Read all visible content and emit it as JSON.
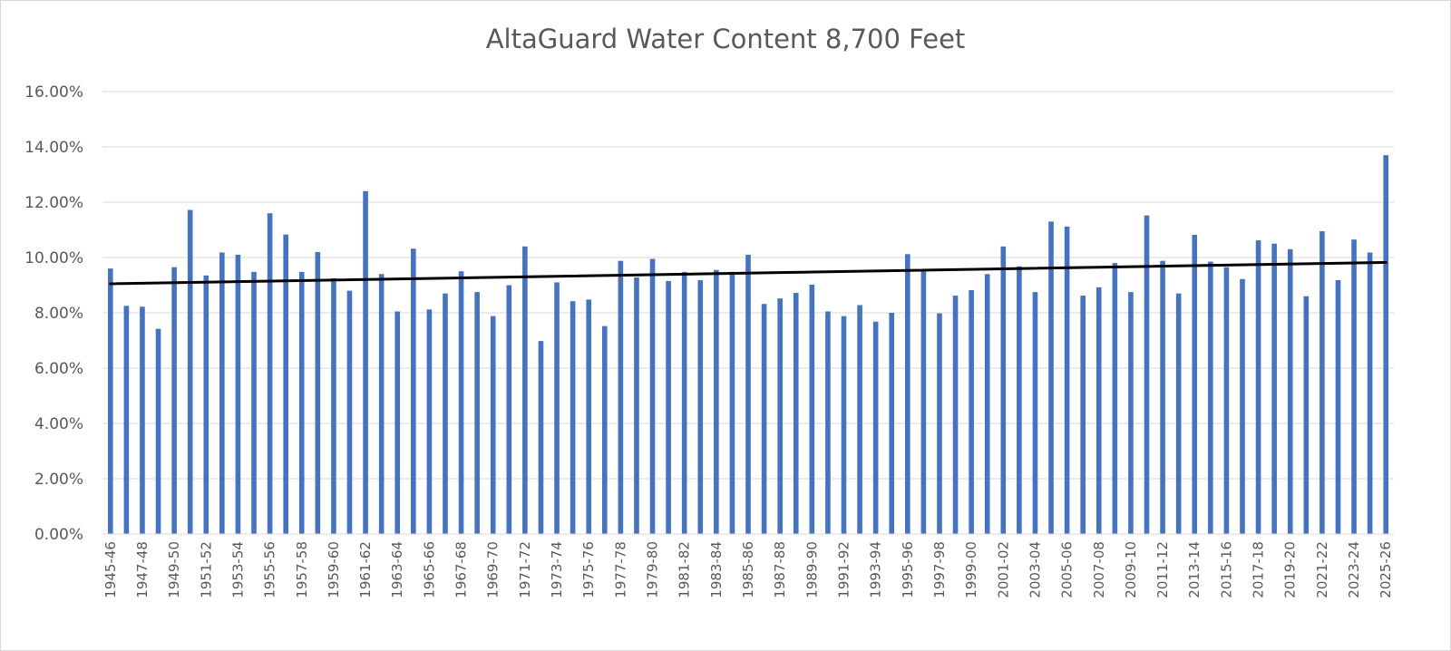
{
  "chart_data": {
    "type": "bar",
    "title": "AltaGuard Water Content 8,700  Feet",
    "xlabel": "",
    "ylabel": "",
    "ylim": [
      0,
      0.16
    ],
    "y_tick_labels": [
      "0.00%",
      "2.00%",
      "4.00%",
      "6.00%",
      "8.00%",
      "10.00%",
      "12.00%",
      "14.00%",
      "16.00%"
    ],
    "grid": true,
    "legend": "none",
    "bar_color": "#4472C4",
    "trendline_color": "#000000",
    "trendline": {
      "type": "linear",
      "start": 0.0905,
      "end": 0.0982
    },
    "categories": [
      "1945-46",
      "1946-47",
      "1947-48",
      "1948-49",
      "1949-50",
      "1950-51",
      "1951-52",
      "1952-53",
      "1953-54",
      "1954-55",
      "1955-56",
      "1956-57",
      "1957-58",
      "1958-59",
      "1959-60",
      "1960-61",
      "1961-62",
      "1962-63",
      "1963-64",
      "1964-65",
      "1965-66",
      "1966-67",
      "1967-68",
      "1968-69",
      "1969-70",
      "1970-71",
      "1971-72",
      "1972-73",
      "1973-74",
      "1974-75",
      "1975-76",
      "1976-77",
      "1977-78",
      "1978-79",
      "1979-80",
      "1980-81",
      "1981-82",
      "1982-83",
      "1983-84",
      "1984-85",
      "1985-86",
      "1986-87",
      "1987-88",
      "1988-89",
      "1989-90",
      "1990-91",
      "1991-92",
      "1992-93",
      "1993-94",
      "1994-95",
      "1995-96",
      "1996-97",
      "1997-98",
      "1998-99",
      "1999-00",
      "2000-01",
      "2001-02",
      "2002-03",
      "2003-04",
      "2004-05",
      "2005-06",
      "2006-07",
      "2007-08",
      "2008-09",
      "2009-10",
      "2010-11",
      "2011-12",
      "2012-13",
      "2013-14",
      "2014-15",
      "2015-16",
      "2016-17",
      "2017-18",
      "2018-19",
      "2019-20",
      "2020-21",
      "2021-22",
      "2022-23",
      "2023-24",
      "2024-25",
      "2025-26"
    ],
    "x_tick_labels": [
      "1945-46",
      "1947-48",
      "1949-50",
      "1951-52",
      "1953-54",
      "1955-56",
      "1957-58",
      "1959-60",
      "1961-62",
      "1963-64",
      "1965-66",
      "1967-68",
      "1969-70",
      "1971-72",
      "1973-74",
      "1975-76",
      "1977-78",
      "1979-80",
      "1981-82",
      "1983-84",
      "1985-86",
      "1987-88",
      "1989-90",
      "1991-92",
      "1993-94",
      "1995-96",
      "1997-98",
      "1999-00",
      "2001-02",
      "2003-04",
      "2005-06",
      "2007-08",
      "2009-10",
      "2011-12",
      "2013-14",
      "2015-16",
      "2017-18",
      "2019-20",
      "2021-22",
      "2023-24",
      "2025-26"
    ],
    "values": [
      0.096,
      0.0825,
      0.0822,
      0.0742,
      0.0965,
      0.1172,
      0.0935,
      0.1018,
      0.101,
      0.0948,
      0.116,
      0.1083,
      0.0948,
      0.102,
      0.0925,
      0.088,
      0.124,
      0.094,
      0.0805,
      0.1032,
      0.0812,
      0.087,
      0.095,
      0.0875,
      0.0788,
      0.09,
      0.104,
      0.0698,
      0.091,
      0.0842,
      0.0848,
      0.0752,
      0.0988,
      0.0928,
      0.0995,
      0.0915,
      0.0948,
      0.0918,
      0.0955,
      0.0948,
      0.101,
      0.0832,
      0.0852,
      0.0872,
      0.0902,
      0.0805,
      0.0788,
      0.0828,
      0.0768,
      0.08,
      0.1012,
      0.095,
      0.0798,
      0.0862,
      0.0882,
      0.094,
      0.104,
      0.0968,
      0.0875,
      0.113,
      0.1112,
      0.0862,
      0.0892,
      0.098,
      0.0875,
      0.1152,
      0.0988,
      0.087,
      0.1082,
      0.0985,
      0.0965,
      0.0922,
      0.1062,
      0.105,
      0.103,
      0.086,
      0.1095,
      0.0918,
      0.1065,
      0.1018,
      0.137
    ]
  }
}
